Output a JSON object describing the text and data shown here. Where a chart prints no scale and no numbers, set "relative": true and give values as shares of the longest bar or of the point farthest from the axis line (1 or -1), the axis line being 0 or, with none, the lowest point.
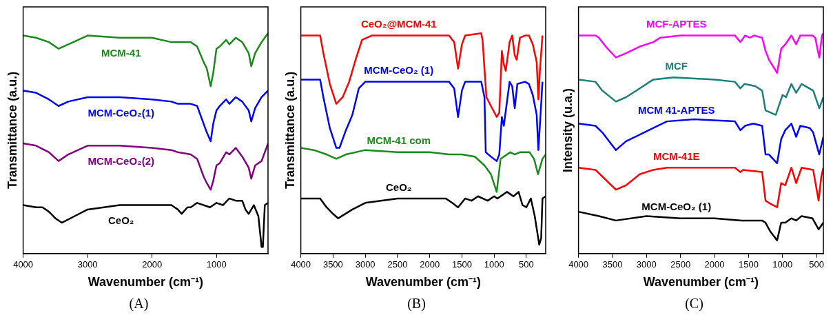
{
  "chart_data": [
    {
      "type": "line",
      "relative": true,
      "xlabel": "Wavenumber (cm⁻¹)",
      "ylabel": "Transmittance (a.u.)",
      "xlim": [
        4000,
        200
      ],
      "xticks": [
        4000,
        3000,
        2000,
        1000
      ],
      "grid": false,
      "legend": false,
      "marker": "none",
      "line_style": "solid",
      "annotations": [
        "(A)"
      ],
      "series": [
        {
          "name": "MCM-41",
          "color": "#1a8a1a",
          "x": [
            4000,
            3800,
            3600,
            3450,
            3300,
            3000,
            2500,
            2000,
            1700,
            1600,
            1400,
            1300,
            1200,
            1150,
            1090,
            1050,
            1000,
            950,
            850,
            800,
            700,
            600,
            500,
            460,
            400,
            300,
            200
          ],
          "values": [
            0.99,
            0.98,
            0.96,
            0.93,
            0.95,
            0.99,
            0.98,
            0.98,
            0.96,
            0.96,
            0.96,
            0.94,
            0.87,
            0.84,
            0.76,
            0.82,
            0.93,
            0.94,
            0.97,
            0.95,
            0.98,
            0.96,
            0.91,
            0.85,
            0.91,
            0.96,
            1.0
          ]
        },
        {
          "name": "MCM-CeO₂(1)",
          "color": "#0000ff",
          "x": [
            4000,
            3800,
            3600,
            3450,
            3300,
            3000,
            2500,
            2000,
            1700,
            1600,
            1400,
            1300,
            1200,
            1150,
            1090,
            1050,
            1000,
            950,
            850,
            800,
            700,
            600,
            500,
            460,
            400,
            300,
            200
          ],
          "values": [
            0.74,
            0.73,
            0.7,
            0.67,
            0.69,
            0.71,
            0.71,
            0.7,
            0.69,
            0.68,
            0.68,
            0.67,
            0.59,
            0.55,
            0.51,
            0.59,
            0.65,
            0.67,
            0.7,
            0.68,
            0.71,
            0.69,
            0.65,
            0.6,
            0.66,
            0.71,
            0.74
          ]
        },
        {
          "name": "MCM-CeO₂(2)",
          "color": "#800080",
          "x": [
            4000,
            3800,
            3600,
            3450,
            3300,
            3000,
            2500,
            2000,
            1700,
            1600,
            1400,
            1300,
            1200,
            1150,
            1090,
            1050,
            1000,
            950,
            850,
            800,
            700,
            600,
            500,
            460,
            400,
            300,
            200
          ],
          "values": [
            0.5,
            0.49,
            0.46,
            0.42,
            0.45,
            0.49,
            0.49,
            0.48,
            0.47,
            0.46,
            0.45,
            0.43,
            0.35,
            0.32,
            0.29,
            0.33,
            0.4,
            0.41,
            0.46,
            0.45,
            0.48,
            0.44,
            0.39,
            0.34,
            0.4,
            0.42,
            0.5
          ]
        },
        {
          "name": "CeO₂",
          "color": "#000000",
          "x": [
            4000,
            3800,
            3700,
            3600,
            3500,
            3400,
            3200,
            3000,
            2500,
            2000,
            1700,
            1600,
            1540,
            1450,
            1400,
            1300,
            1100,
            1000,
            900,
            800,
            700,
            600,
            550,
            500,
            420,
            350,
            300,
            280,
            250,
            200
          ],
          "values": [
            0.22,
            0.21,
            0.21,
            0.19,
            0.16,
            0.14,
            0.17,
            0.2,
            0.22,
            0.22,
            0.22,
            0.2,
            0.18,
            0.21,
            0.21,
            0.23,
            0.21,
            0.23,
            0.22,
            0.25,
            0.24,
            0.24,
            0.2,
            0.18,
            0.22,
            0.17,
            0.03,
            0.03,
            0.22,
            0.23
          ]
        }
      ]
    },
    {
      "type": "line",
      "relative": true,
      "xlabel": "Wavenumber (cm⁻¹)",
      "ylabel": "Transmittance (a.u.)",
      "xlim": [
        4000,
        200
      ],
      "xticks": [
        4000,
        3500,
        3000,
        2500,
        2000,
        1500,
        1000,
        500
      ],
      "grid": false,
      "legend": false,
      "marker": "none",
      "line_style": "solid",
      "annotations": [
        "(B)"
      ],
      "series": [
        {
          "name": "CeO₂@MCM-41",
          "color": "#ff0000",
          "x": [
            4000,
            3750,
            3700,
            3650,
            3550,
            3450,
            3350,
            3250,
            3150,
            3050,
            2900,
            2300,
            1700,
            1620,
            1560,
            1500,
            1450,
            1200,
            1180,
            1120,
            1050,
            960,
            920,
            880,
            850,
            820,
            760,
            720,
            680,
            650,
            600,
            520,
            460,
            400,
            340,
            313,
            290,
            250
          ],
          "values": [
            0.99,
            0.99,
            0.99,
            0.91,
            0.77,
            0.68,
            0.71,
            0.78,
            0.88,
            0.97,
            0.99,
            0.99,
            0.99,
            0.96,
            0.84,
            0.95,
            0.99,
            1.0,
            0.97,
            0.71,
            0.67,
            0.62,
            0.64,
            0.92,
            0.86,
            0.83,
            0.96,
            0.99,
            0.9,
            0.88,
            0.98,
            0.99,
            0.99,
            0.95,
            0.87,
            0.7,
            0.83,
            0.99
          ]
        },
        {
          "name": "MCM-CeO₂ (1)",
          "color": "#0000ff",
          "x": [
            4000,
            3700,
            3650,
            3550,
            3450,
            3400,
            3300,
            3200,
            3100,
            3000,
            2300,
            1700,
            1620,
            1560,
            1500,
            1450,
            1200,
            1150,
            1130,
            1050,
            960,
            920,
            880,
            850,
            760,
            720,
            680,
            640,
            520,
            460,
            400,
            340,
            313,
            280,
            250
          ],
          "values": [
            0.79,
            0.79,
            0.71,
            0.57,
            0.48,
            0.48,
            0.56,
            0.63,
            0.75,
            0.78,
            0.78,
            0.78,
            0.75,
            0.62,
            0.74,
            0.78,
            0.78,
            0.71,
            0.46,
            0.44,
            0.42,
            0.45,
            0.62,
            0.58,
            0.78,
            0.76,
            0.66,
            0.77,
            0.78,
            0.77,
            0.72,
            0.63,
            0.47,
            0.63,
            0.78
          ]
        },
        {
          "name": "MCM-41 com",
          "color": "#1a8a1a",
          "x": [
            4000,
            3800,
            3600,
            3450,
            3300,
            3000,
            2500,
            2000,
            1700,
            1500,
            1300,
            1150,
            1050,
            960,
            900,
            750,
            680,
            600,
            450,
            380,
            320,
            250,
            200
          ],
          "values": [
            0.48,
            0.47,
            0.45,
            0.43,
            0.45,
            0.47,
            0.46,
            0.46,
            0.45,
            0.45,
            0.44,
            0.4,
            0.36,
            0.28,
            0.43,
            0.46,
            0.45,
            0.46,
            0.46,
            0.43,
            0.36,
            0.43,
            0.45
          ]
        },
        {
          "name": "CeO₂",
          "color": "#000000",
          "x": [
            4000,
            3800,
            3700,
            3600,
            3500,
            3420,
            3200,
            3000,
            2500,
            2000,
            1750,
            1650,
            1560,
            1450,
            1350,
            1250,
            1100,
            1000,
            950,
            800,
            700,
            620,
            560,
            500,
            430,
            370,
            300,
            270,
            250,
            200
          ],
          "values": [
            0.25,
            0.25,
            0.25,
            0.21,
            0.18,
            0.16,
            0.2,
            0.23,
            0.25,
            0.25,
            0.25,
            0.23,
            0.21,
            0.25,
            0.24,
            0.26,
            0.24,
            0.26,
            0.25,
            0.28,
            0.26,
            0.28,
            0.22,
            0.21,
            0.25,
            0.17,
            0.04,
            0.07,
            0.25,
            0.26
          ]
        }
      ]
    },
    {
      "type": "line",
      "relative": true,
      "xlabel": "Wavenumber (cm⁻¹)",
      "ylabel": "Intensity (u.a.)",
      "xlim": [
        4000,
        400
      ],
      "xticks": [
        4000,
        3500,
        3000,
        2500,
        2000,
        1500,
        1000,
        500
      ],
      "grid": false,
      "legend": false,
      "marker": "none",
      "line_style": "solid",
      "annotations": [
        "(C)"
      ],
      "series": [
        {
          "name": "MCF-APTES",
          "color": "#ff00ff",
          "x": [
            4000,
            3750,
            3700,
            3600,
            3450,
            3300,
            3100,
            2900,
            2800,
            2500,
            2000,
            1700,
            1620,
            1550,
            1480,
            1420,
            1300,
            1250,
            1200,
            1080,
            1020,
            960,
            870,
            800,
            740,
            560,
            520,
            460,
            420,
            400
          ],
          "values": [
            0.99,
            0.99,
            0.98,
            0.94,
            0.89,
            0.91,
            0.94,
            0.96,
            0.98,
            0.99,
            0.99,
            0.99,
            0.96,
            0.99,
            0.98,
            0.99,
            0.98,
            0.92,
            0.88,
            0.82,
            0.93,
            0.95,
            0.99,
            0.95,
            0.99,
            0.99,
            0.98,
            0.89,
            0.99,
            1.0
          ]
        },
        {
          "name": "MCF",
          "color": "#1a7f7a",
          "x": [
            4000,
            3750,
            3650,
            3450,
            3300,
            3100,
            2900,
            2600,
            2000,
            1700,
            1620,
            1560,
            1400,
            1300,
            1250,
            1100,
            1000,
            950,
            870,
            800,
            720,
            550,
            460,
            400
          ],
          "values": [
            0.79,
            0.78,
            0.74,
            0.69,
            0.71,
            0.75,
            0.79,
            0.8,
            0.79,
            0.78,
            0.75,
            0.77,
            0.76,
            0.74,
            0.65,
            0.63,
            0.72,
            0.71,
            0.77,
            0.73,
            0.77,
            0.74,
            0.66,
            0.71
          ]
        },
        {
          "name": "MCM 41-APTES",
          "color": "#0000ff",
          "x": [
            4000,
            3750,
            3650,
            3450,
            3300,
            3100,
            2900,
            2700,
            2300,
            1700,
            1620,
            1550,
            1430,
            1300,
            1250,
            1200,
            1080,
            1020,
            960,
            870,
            800,
            740,
            600,
            550,
            460,
            400
          ],
          "values": [
            0.59,
            0.58,
            0.55,
            0.47,
            0.51,
            0.54,
            0.57,
            0.6,
            0.61,
            0.6,
            0.56,
            0.58,
            0.59,
            0.58,
            0.45,
            0.45,
            0.41,
            0.52,
            0.56,
            0.59,
            0.53,
            0.58,
            0.57,
            0.55,
            0.45,
            0.53
          ]
        },
        {
          "name": "MCM-41E",
          "color": "#ff0000",
          "x": [
            4000,
            3750,
            3650,
            3450,
            3300,
            3100,
            2900,
            2700,
            2000,
            1700,
            1620,
            1580,
            1300,
            1250,
            1200,
            1080,
            1020,
            960,
            870,
            800,
            720,
            550,
            470,
            430,
            400
          ],
          "values": [
            0.39,
            0.38,
            0.35,
            0.29,
            0.31,
            0.36,
            0.38,
            0.39,
            0.39,
            0.39,
            0.37,
            0.38,
            0.37,
            0.24,
            0.23,
            0.21,
            0.32,
            0.31,
            0.39,
            0.32,
            0.39,
            0.38,
            0.24,
            0.35,
            0.39
          ]
        },
        {
          "name": "MCM-CeO₂ (1)",
          "color": "#000000",
          "x": [
            4000,
            3700,
            3450,
            3000,
            2500,
            2000,
            1600,
            1300,
            1250,
            1180,
            1080,
            1020,
            960,
            870,
            800,
            720,
            560,
            470,
            400
          ],
          "values": [
            0.19,
            0.17,
            0.15,
            0.17,
            0.16,
            0.16,
            0.15,
            0.15,
            0.14,
            0.1,
            0.06,
            0.14,
            0.14,
            0.16,
            0.15,
            0.17,
            0.16,
            0.11,
            0.14
          ]
        }
      ]
    }
  ]
}
